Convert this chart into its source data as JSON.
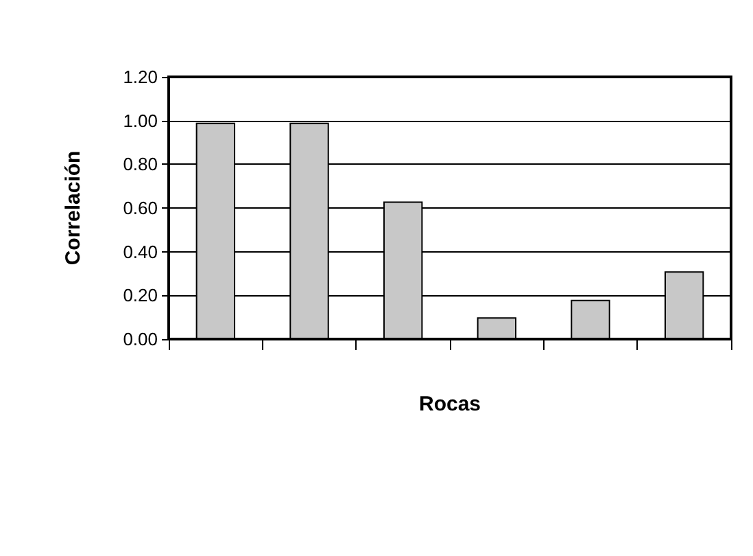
{
  "chart_data": {
    "type": "bar",
    "xlabel": "Rocas",
    "ylabel": "Correlación",
    "categories": [
      null,
      null,
      null,
      null,
      null,
      null
    ],
    "values": [
      0.99,
      0.99,
      0.63,
      0.1,
      0.18,
      0.31
    ],
    "color": "#c8c8c8",
    "ylim": [
      0,
      1.2
    ],
    "yticks": [
      {
        "value": 0,
        "label": "0.00"
      },
      {
        "value": 0.2,
        "label": "0.20"
      },
      {
        "value": 0.4,
        "label": "0.40"
      },
      {
        "value": 0.6,
        "label": "0.60"
      },
      {
        "value": 0.8,
        "label": "0.80"
      },
      {
        "value": 1,
        "label": "1.00"
      },
      {
        "value": 1.2,
        "label": "1.20"
      }
    ],
    "grid": "y"
  }
}
